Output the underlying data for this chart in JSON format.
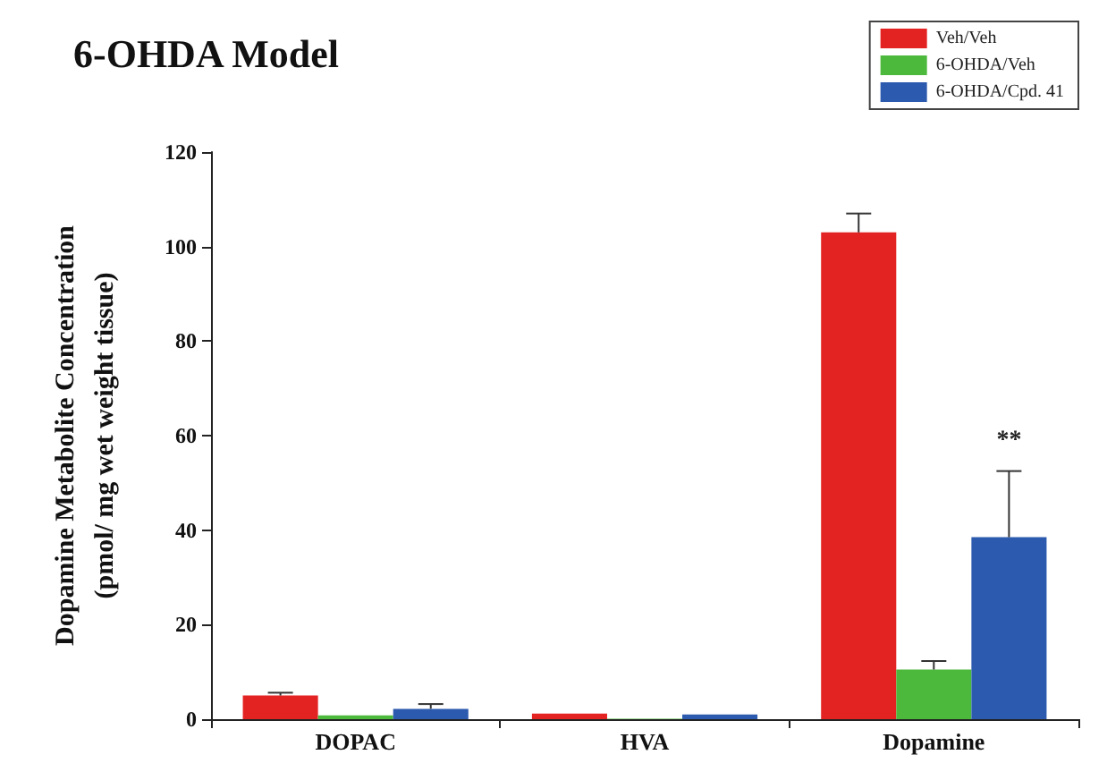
{
  "chart_data": {
    "type": "bar",
    "title": "6-OHDA Model",
    "ylabel": "Dopamine Metabolite Concentration\n(pmol/ mg wet weight tissue)",
    "categories": [
      "DOPAC",
      "HVA",
      "Dopamine"
    ],
    "series": [
      {
        "name": "Veh/Veh",
        "color": "#e32222",
        "values": [
          5,
          1.2,
          103
        ],
        "errors": [
          [
            5,
            5.6
          ],
          null,
          [
            103,
            107
          ]
        ]
      },
      {
        "name": "6-OHDA/Veh",
        "color": "#4cb83c",
        "values": [
          0.8,
          0.1,
          10.5
        ],
        "errors": [
          null,
          null,
          [
            10.5,
            12.3
          ]
        ]
      },
      {
        "name": "6-OHDA/Cpd. 41",
        "color": "#2c5aae",
        "values": [
          2.2,
          1.0,
          38.5
        ],
        "errors": [
          [
            2.2,
            3.2
          ],
          null,
          [
            38.5,
            52.5
          ]
        ]
      }
    ],
    "ylim": [
      0,
      120
    ],
    "yticks": [
      0,
      20,
      40,
      60,
      80,
      100,
      120
    ],
    "grid": false,
    "legend": "top right",
    "annotations": [
      "**"
    ]
  }
}
